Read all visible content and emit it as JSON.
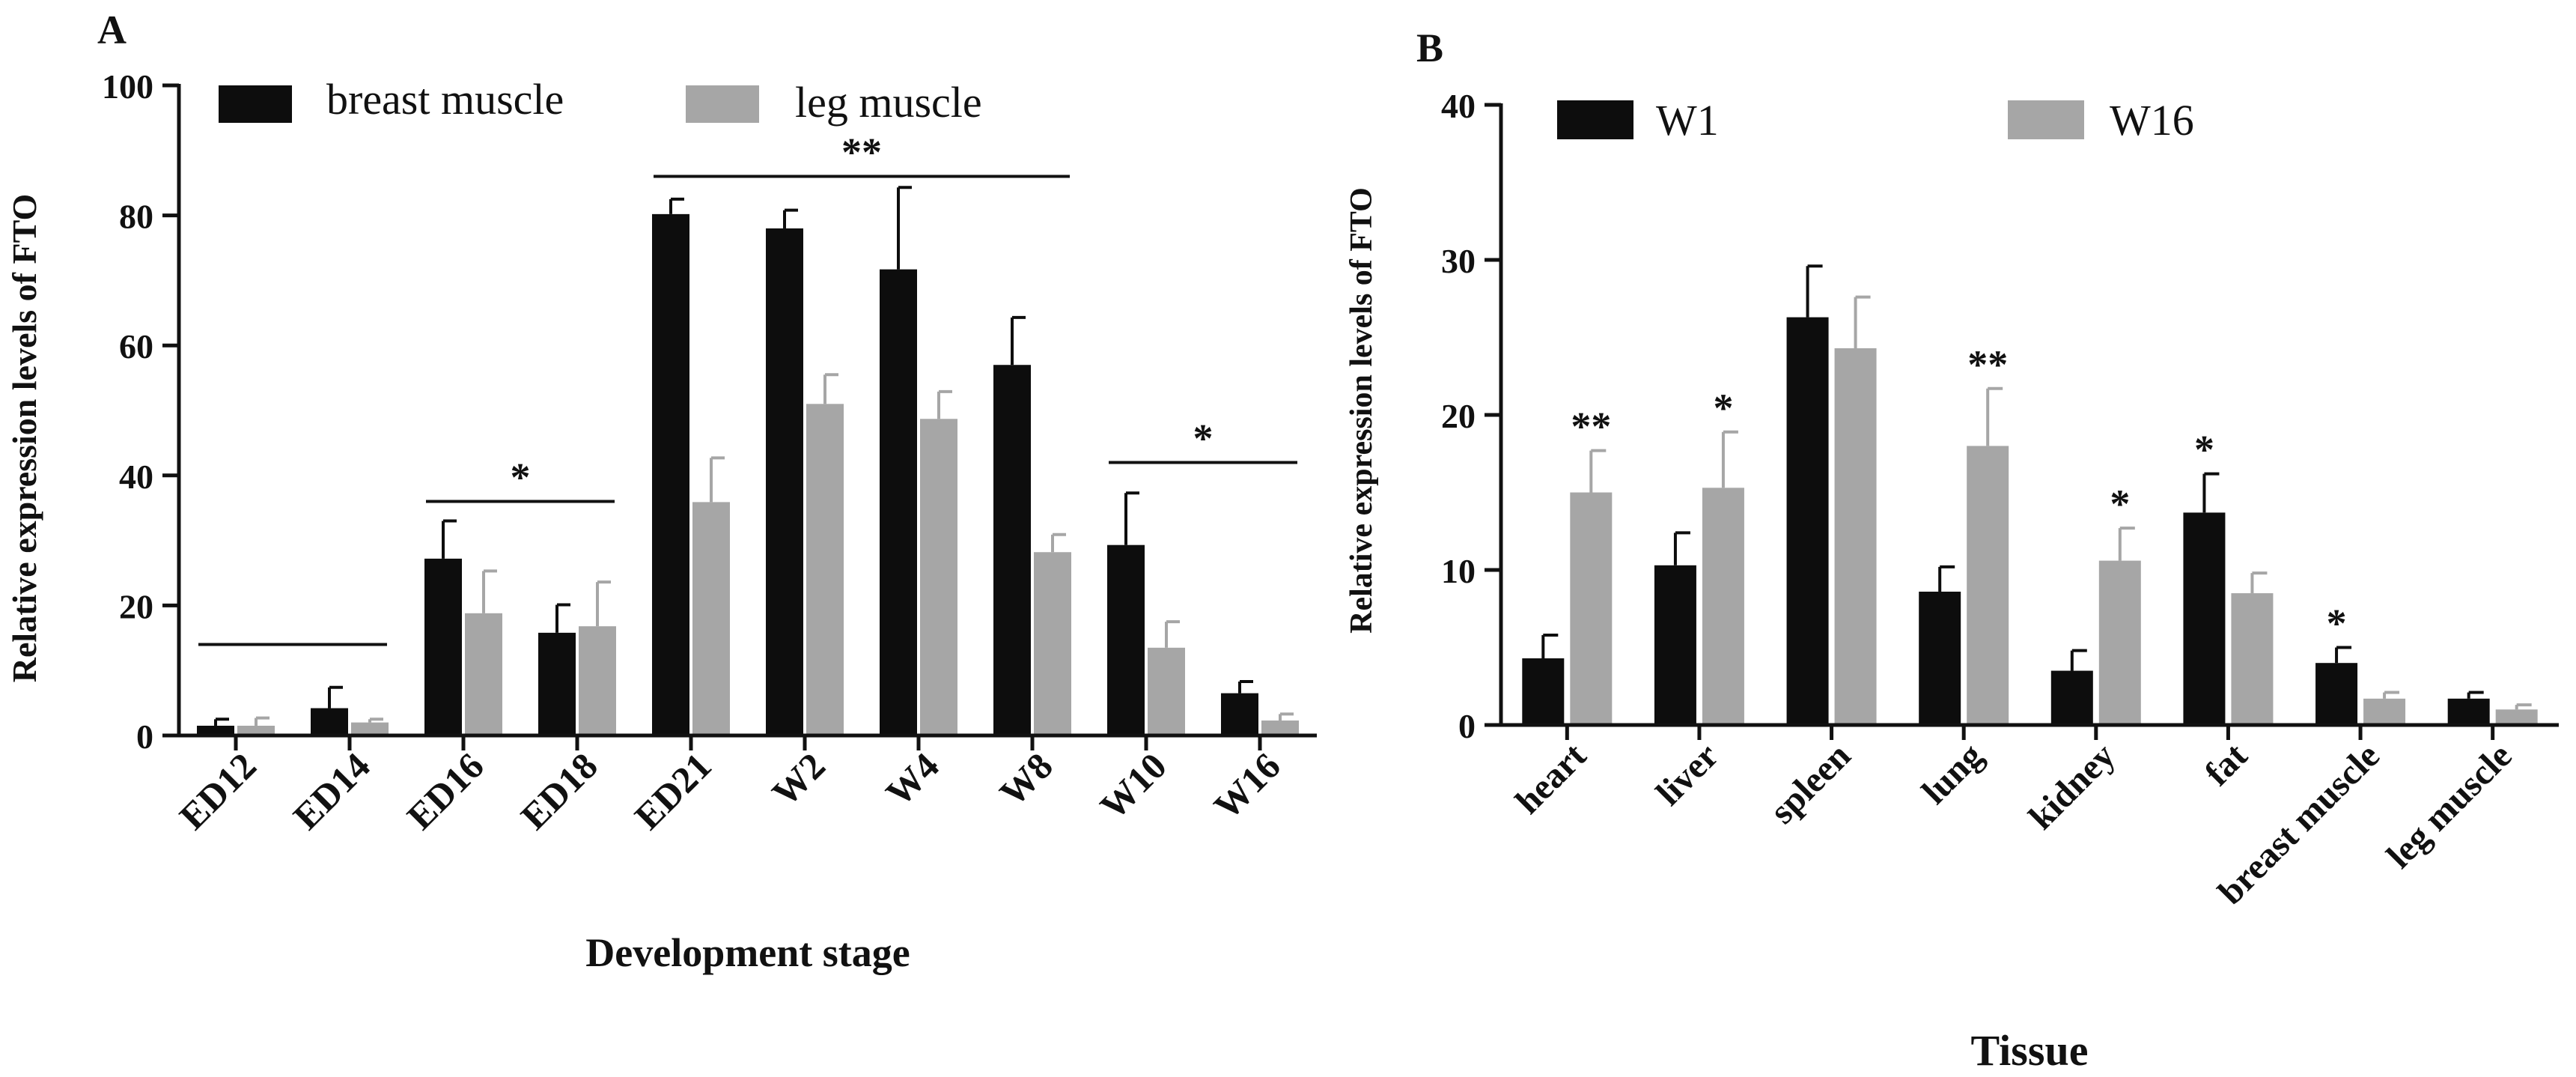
{
  "colors": {
    "series_dark": "#0d0d0d",
    "series_light": "#a6a6a6",
    "axis": "#111111"
  },
  "chart_data": [
    {
      "panel": "A",
      "type": "bar",
      "xlabel": "Development stage",
      "ylabel": "Relative expression levels of FTO",
      "ylim": [
        0,
        100
      ],
      "yticks": [
        "0",
        "20",
        "40",
        "60",
        "80",
        "100"
      ],
      "categories": [
        "ED12",
        "ED14",
        "ED16",
        "ED18",
        "ED21",
        "W2",
        "W4",
        "W8",
        "W10",
        "W16"
      ],
      "series": [
        {
          "name": "breast muscle",
          "values": [
            1.5,
            4.2,
            27.2,
            15.8,
            80.2,
            78.0,
            71.7,
            57.0,
            29.3,
            6.5
          ],
          "errors": [
            1.0,
            3.2,
            5.8,
            4.3,
            2.3,
            2.8,
            12.6,
            7.3,
            8.0,
            1.8
          ]
        },
        {
          "name": "leg muscle",
          "values": [
            1.5,
            2.0,
            18.8,
            16.8,
            35.9,
            51.0,
            48.7,
            28.2,
            13.5,
            2.3
          ],
          "errors": [
            1.2,
            0.5,
            6.5,
            6.8,
            6.8,
            4.5,
            4.2,
            2.7,
            4.0,
            1.0
          ]
        }
      ],
      "significance": [
        {
          "label": "",
          "from": 0,
          "to": 1,
          "y": 14
        },
        {
          "label": "*",
          "from": 2,
          "to": 3,
          "y": 36
        },
        {
          "label": "**",
          "from": 4,
          "to": 7,
          "y": 86
        },
        {
          "label": "*",
          "from": 8,
          "to": 9,
          "y": 42
        }
      ],
      "legend": "top-left"
    },
    {
      "panel": "B",
      "type": "bar",
      "xlabel": "Tissue",
      "ylabel": "Relative expression levels of FTO",
      "ylim": [
        0,
        40
      ],
      "yticks": [
        "0",
        "10",
        "20",
        "30",
        "40"
      ],
      "categories": [
        "heart",
        "liver",
        "spleen",
        "lung",
        "kidney",
        "fat",
        "breast muscle",
        "leg muscle"
      ],
      "series": [
        {
          "name": "W1",
          "values": [
            4.3,
            10.3,
            26.3,
            8.6,
            3.5,
            13.7,
            4.0,
            1.7
          ],
          "errors": [
            1.5,
            2.1,
            3.3,
            1.6,
            1.3,
            2.5,
            1.0,
            0.4
          ]
        },
        {
          "name": "W16",
          "values": [
            15.0,
            15.3,
            24.3,
            18.0,
            10.6,
            8.5,
            1.7,
            1.0
          ],
          "errors": [
            2.7,
            3.6,
            3.3,
            3.7,
            2.1,
            1.3,
            0.4,
            0.3
          ]
        }
      ],
      "stars": [
        {
          "label": "**",
          "category": 0,
          "series": 1
        },
        {
          "label": "*",
          "category": 1,
          "series": 1
        },
        {
          "label": "**",
          "category": 3,
          "series": 1
        },
        {
          "label": "*",
          "category": 4,
          "series": 1
        },
        {
          "label": "*",
          "category": 5,
          "series": 0
        },
        {
          "label": "*",
          "category": 6,
          "series": 0
        }
      ],
      "legend": "top"
    }
  ]
}
